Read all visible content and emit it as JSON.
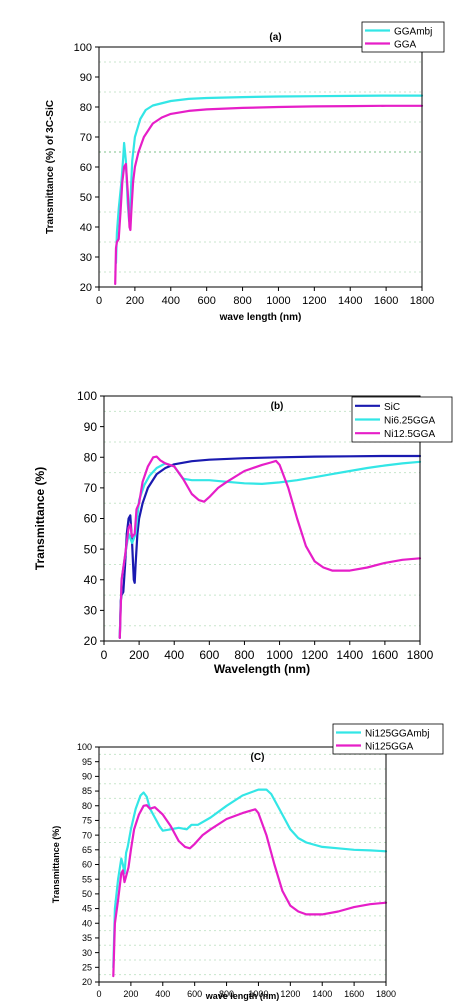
{
  "chart_data": [
    {
      "type": "line",
      "title": "(a)",
      "xlabel": "wave length (nm)",
      "ylabel": "Transmittance (%) of 3C-SiC",
      "xlim": [
        0,
        1800
      ],
      "ylim": [
        20,
        100
      ],
      "xticks": [
        0,
        200,
        400,
        600,
        800,
        1000,
        1200,
        1400,
        1600,
        1800
      ],
      "yticks": [
        20,
        30,
        40,
        50,
        60,
        70,
        80,
        90,
        100
      ],
      "grid": true,
      "legend_position": "top-right",
      "series": [
        {
          "name": "GGAmbj",
          "color": "#33e6e6",
          "x": [
            95,
            100,
            110,
            125,
            135,
            140,
            150,
            160,
            168,
            175,
            185,
            200,
            230,
            260,
            300,
            400,
            500,
            600,
            800,
            1000,
            1200,
            1400,
            1600,
            1800
          ],
          "y": [
            28,
            38,
            46,
            55,
            63,
            68,
            62,
            48,
            42,
            48,
            62,
            70,
            76,
            79,
            80.5,
            82,
            82.7,
            83,
            83.3,
            83.5,
            83.6,
            83.7,
            83.8,
            83.8
          ]
        },
        {
          "name": "GGA",
          "color": "#e61ec8",
          "x": [
            90,
            95,
            100,
            110,
            120,
            130,
            140,
            150,
            160,
            170,
            175,
            180,
            190,
            200,
            220,
            250,
            300,
            350,
            400,
            500,
            600,
            800,
            1000,
            1200,
            1400,
            1600,
            1800
          ],
          "y": [
            21,
            33,
            35,
            36,
            45,
            55,
            60,
            61,
            52,
            40,
            39,
            45,
            55,
            60,
            65,
            70,
            74.5,
            76.5,
            77.7,
            78.7,
            79.2,
            79.7,
            80,
            80.2,
            80.3,
            80.4,
            80.4
          ]
        }
      ]
    },
    {
      "type": "line",
      "title": "(b)",
      "xlabel": "Wavelength (nm)",
      "ylabel": "Transmittance (%)",
      "xlim": [
        0,
        1800
      ],
      "ylim": [
        20,
        100
      ],
      "xticks": [
        0,
        200,
        400,
        600,
        800,
        1000,
        1200,
        1400,
        1600,
        1800
      ],
      "yticks": [
        20,
        30,
        40,
        50,
        60,
        70,
        80,
        90,
        100
      ],
      "grid": true,
      "legend_position": "top-right",
      "series": [
        {
          "name": "SiC",
          "color": "#1a1ab0",
          "x": [
            90,
            95,
            100,
            110,
            120,
            130,
            140,
            150,
            160,
            170,
            175,
            180,
            190,
            200,
            220,
            250,
            300,
            350,
            400,
            500,
            600,
            800,
            1000,
            1200,
            1400,
            1600,
            1800
          ],
          "y": [
            21,
            33,
            35,
            36,
            45,
            55,
            60,
            61,
            52,
            40,
            39,
            45,
            55,
            60,
            65,
            70,
            74.5,
            76.5,
            77.7,
            78.7,
            79.2,
            79.7,
            80,
            80.2,
            80.3,
            80.4,
            80.4
          ]
        },
        {
          "name": "Ni6.25GGA",
          "color": "#33e6e6",
          "x": [
            90,
            100,
            120,
            140,
            160,
            180,
            200,
            230,
            260,
            300,
            350,
            400,
            450,
            500,
            600,
            700,
            800,
            900,
            1000,
            1100,
            1200,
            1300,
            1400,
            1500,
            1600,
            1700,
            1800
          ],
          "y": [
            22,
            40,
            48,
            55,
            52,
            55,
            66,
            71,
            74,
            76.5,
            78,
            77,
            73,
            72.5,
            72.5,
            72,
            71.5,
            71.3,
            71.8,
            72.5,
            73.5,
            74.5,
            75.5,
            76.5,
            77.3,
            78,
            78.5
          ]
        },
        {
          "name": "Ni12.5GGA",
          "color": "#e61ec8",
          "x": [
            90,
            100,
            120,
            140,
            150,
            160,
            175,
            185,
            200,
            220,
            250,
            280,
            300,
            320,
            350,
            400,
            450,
            500,
            540,
            570,
            600,
            650,
            700,
            800,
            900,
            950,
            980,
            1000,
            1050,
            1100,
            1150,
            1200,
            1250,
            1300,
            1350,
            1400,
            1500,
            1600,
            1700,
            1800
          ],
          "y": [
            21,
            40,
            48,
            57,
            58,
            54,
            55,
            63,
            65,
            72,
            77,
            80,
            80.2,
            79,
            78,
            77,
            73,
            68,
            66,
            65.5,
            67,
            70,
            72,
            75.5,
            77.5,
            78.3,
            78.8,
            77.5,
            70,
            60,
            51,
            46,
            44,
            43,
            43,
            43,
            44,
            45.5,
            46.5,
            47
          ]
        }
      ]
    },
    {
      "type": "line",
      "title": "(C)",
      "xlabel": "wave length (nm)",
      "ylabel": "Transmittance (%)",
      "xlim": [
        0,
        1800
      ],
      "ylim": [
        20,
        100
      ],
      "xticks": [
        0,
        200,
        400,
        600,
        800,
        1000,
        1200,
        1400,
        1600,
        1800
      ],
      "yticks": [
        20,
        25,
        30,
        35,
        40,
        45,
        50,
        55,
        60,
        65,
        70,
        75,
        80,
        85,
        90,
        95,
        100
      ],
      "grid": true,
      "legend_position": "top-right",
      "series": [
        {
          "name": "Ni125GGAmbj",
          "color": "#33e6e6",
          "x": [
            90,
            100,
            120,
            140,
            150,
            160,
            170,
            180,
            200,
            230,
            260,
            280,
            300,
            320,
            350,
            380,
            400,
            450,
            500,
            550,
            580,
            620,
            700,
            800,
            900,
            1000,
            1050,
            1080,
            1100,
            1150,
            1200,
            1250,
            1300,
            1400,
            1500,
            1600,
            1700,
            1800
          ],
          "y": [
            25,
            45,
            55,
            62,
            60,
            57,
            64,
            66,
            72,
            79,
            83.5,
            84.5,
            83,
            79,
            76,
            73,
            71.5,
            72,
            72.5,
            72,
            73.5,
            73.5,
            76,
            80,
            83.5,
            85.5,
            85.5,
            84,
            82,
            77,
            72,
            69,
            67.5,
            66,
            65.5,
            65,
            64.8,
            64.5
          ]
        },
        {
          "name": "Ni125GGA",
          "color": "#e61ec8",
          "x": [
            90,
            100,
            120,
            140,
            150,
            160,
            175,
            185,
            200,
            220,
            250,
            280,
            300,
            320,
            350,
            400,
            450,
            500,
            540,
            570,
            600,
            650,
            700,
            800,
            900,
            950,
            980,
            1000,
            1050,
            1100,
            1150,
            1200,
            1250,
            1300,
            1350,
            1400,
            1500,
            1600,
            1700,
            1800
          ],
          "y": [
            22,
            40,
            48,
            57,
            58,
            54,
            57,
            59,
            65,
            72,
            77,
            80,
            80.2,
            79,
            79.5,
            77,
            73,
            68,
            66,
            65.5,
            67,
            70,
            72,
            75.5,
            77.5,
            78.3,
            78.8,
            77.5,
            70,
            60,
            51,
            46,
            44,
            43,
            43,
            43,
            44,
            45.5,
            46.5,
            47
          ]
        }
      ]
    }
  ]
}
